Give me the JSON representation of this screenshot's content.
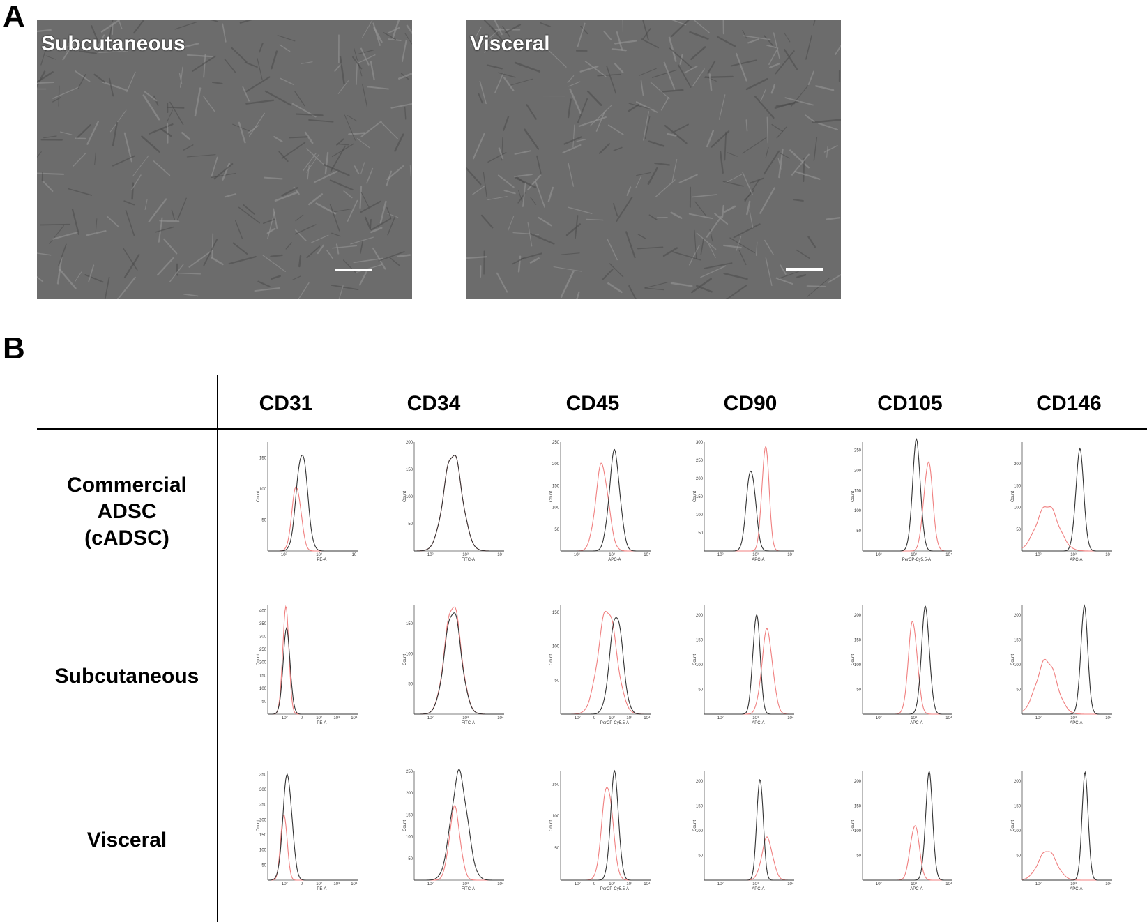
{
  "panels": {
    "a": "A",
    "b": "B"
  },
  "micrographs": [
    {
      "label": "Subcutaneous"
    },
    {
      "label": "Visceral"
    }
  ],
  "table": {
    "columns": [
      "CD31",
      "CD34",
      "CD45",
      "CD90",
      "CD105",
      "CD146"
    ],
    "rows": [
      {
        "label": [
          "Commercial",
          "ADSC",
          "(cADSC)"
        ]
      },
      {
        "label": [
          "Subcutaneous"
        ]
      },
      {
        "label": [
          "Visceral"
        ]
      }
    ]
  },
  "colors": {
    "control": "#333333",
    "marker": "#f08080"
  },
  "chart_data": {
    "type": "histogram-grid",
    "ylabel": "Count",
    "series_colors": {
      "black": "#333333",
      "red": "#f08080"
    },
    "rows": [
      {
        "sample": "Commercial ADSC (cADSC)",
        "plots": [
          {
            "marker": "CD31",
            "xlabel": "PE-A",
            "ymax": 175,
            "yticks": [
              "50",
              "100",
              "150"
            ],
            "xticks": [
              "10²",
              "10³",
              "10"
            ],
            "black": {
              "center": 0.38,
              "width": 0.06,
              "peak": 160
            },
            "red": {
              "center": 0.32,
              "width": 0.05,
              "peak": 105
            }
          },
          {
            "marker": "CD34",
            "xlabel": "FITC-A",
            "ymax": 200,
            "yticks": [
              "50",
              "100",
              "150",
              "200"
            ],
            "xticks": [
              "10²",
              "10³",
              "10⁴"
            ],
            "black": {
              "center": 0.43,
              "width": 0.1,
              "peak": 180
            },
            "red": {
              "center": 0.43,
              "width": 0.1,
              "peak": 180
            }
          },
          {
            "marker": "CD45",
            "xlabel": "APC-A",
            "ymax": 250,
            "yticks": [
              "50",
              "100",
              "150",
              "200",
              "250"
            ],
            "xticks": [
              "10²",
              "10³",
              "10⁴"
            ],
            "black": {
              "center": 0.6,
              "width": 0.06,
              "peak": 225
            },
            "red": {
              "center": 0.46,
              "width": 0.07,
              "peak": 198
            }
          },
          {
            "marker": "CD90",
            "xlabel": "APC-A",
            "ymax": 300,
            "yticks": [
              "50",
              "100",
              "150",
              "200",
              "250",
              "300"
            ],
            "xticks": [
              "10²",
              "10³",
              "10⁴"
            ],
            "black": {
              "center": 0.52,
              "width": 0.05,
              "peak": 228
            },
            "red": {
              "center": 0.68,
              "width": 0.04,
              "peak": 290
            }
          },
          {
            "marker": "CD105",
            "xlabel": "PerCP-Cy5.5-A",
            "ymax": 270,
            "yticks": [
              "50",
              "100",
              "150",
              "200",
              "250"
            ],
            "xticks": [
              "10²",
              "10³",
              "10⁴"
            ],
            "black": {
              "center": 0.6,
              "width": 0.045,
              "peak": 268
            },
            "red": {
              "center": 0.73,
              "width": 0.05,
              "peak": 220
            }
          },
          {
            "marker": "CD146",
            "xlabel": "APC-A",
            "ymax": 250,
            "yticks": [
              "50",
              "100",
              "150",
              "200"
            ],
            "xticks": [
              "10²",
              "10³",
              "10⁴"
            ],
            "black": {
              "center": 0.64,
              "width": 0.045,
              "peak": 228
            },
            "red": {
              "center": 0.28,
              "width": 0.12,
              "peak": 105
            }
          }
        ]
      },
      {
        "sample": "Subcutaneous",
        "plots": [
          {
            "marker": "CD31",
            "xlabel": "PE-A",
            "ymax": 420,
            "yticks": [
              "50",
              "100",
              "150",
              "200",
              "250",
              "300",
              "350",
              "400"
            ],
            "xticks": [
              "-10²",
              "0",
              "10²",
              "10³",
              "10⁴"
            ],
            "black": {
              "center": 0.21,
              "width": 0.04,
              "peak": 320
            },
            "red": {
              "center": 0.2,
              "width": 0.035,
              "peak": 405
            }
          },
          {
            "marker": "CD34",
            "xlabel": "FITC-A",
            "ymax": 180,
            "yticks": [
              "50",
              "100",
              "150"
            ],
            "xticks": [
              "10²",
              "10³",
              "10⁴"
            ],
            "black": {
              "center": 0.43,
              "width": 0.09,
              "peak": 172
            },
            "red": {
              "center": 0.43,
              "width": 0.09,
              "peak": 182
            }
          },
          {
            "marker": "CD45",
            "xlabel": "PerCP-Cy5.5-A",
            "ymax": 160,
            "yticks": [
              "50",
              "100",
              "150"
            ],
            "xticks": [
              "-10²",
              "0",
              "10²",
              "10³",
              "10⁴"
            ],
            "black": {
              "center": 0.62,
              "width": 0.07,
              "peak": 148
            },
            "red": {
              "center": 0.52,
              "width": 0.1,
              "peak": 155
            }
          },
          {
            "marker": "CD90",
            "xlabel": "APC-A",
            "ymax": 220,
            "yticks": [
              "50",
              "100",
              "150",
              "200"
            ],
            "xticks": [
              "10²",
              "10³",
              "10⁴"
            ],
            "black": {
              "center": 0.58,
              "width": 0.04,
              "peak": 205
            },
            "red": {
              "center": 0.7,
              "width": 0.06,
              "peak": 168
            }
          },
          {
            "marker": "CD105",
            "xlabel": "APC-A",
            "ymax": 220,
            "yticks": [
              "50",
              "100",
              "150",
              "200"
            ],
            "xticks": [
              "10²",
              "10³",
              "10⁴"
            ],
            "black": {
              "center": 0.7,
              "width": 0.045,
              "peak": 212
            },
            "red": {
              "center": 0.56,
              "width": 0.05,
              "peak": 187
            }
          },
          {
            "marker": "CD146",
            "xlabel": "APC-A",
            "ymax": 220,
            "yticks": [
              "50",
              "100",
              "150",
              "200"
            ],
            "xticks": [
              "10²",
              "10³",
              "10⁴"
            ],
            "black": {
              "center": 0.69,
              "width": 0.04,
              "peak": 212
            },
            "red": {
              "center": 0.27,
              "width": 0.11,
              "peak": 110
            }
          }
        ]
      },
      {
        "sample": "Visceral",
        "plots": [
          {
            "marker": "CD31",
            "xlabel": "PE-A",
            "ymax": 360,
            "yticks": [
              "50",
              "100",
              "150",
              "200",
              "250",
              "300",
              "350"
            ],
            "xticks": [
              "-10²",
              "0",
              "10²",
              "10³",
              "10⁴"
            ],
            "black": {
              "center": 0.22,
              "width": 0.05,
              "peak": 350
            },
            "red": {
              "center": 0.18,
              "width": 0.035,
              "peak": 225
            }
          },
          {
            "marker": "CD34",
            "xlabel": "FITC-A",
            "ymax": 250,
            "yticks": [
              "50",
              "100",
              "150",
              "200",
              "250"
            ],
            "xticks": [
              "10²",
              "10³",
              "10⁴"
            ],
            "black": {
              "center": 0.5,
              "width": 0.09,
              "peak": 245
            },
            "red": {
              "center": 0.45,
              "width": 0.06,
              "peak": 165
            }
          },
          {
            "marker": "CD45",
            "xlabel": "PerCP-Cy5.5-A",
            "ymax": 170,
            "yticks": [
              "50",
              "100",
              "150"
            ],
            "xticks": [
              "-10²",
              "0",
              "10²",
              "10³",
              "10⁴"
            ],
            "black": {
              "center": 0.6,
              "width": 0.045,
              "peak": 165
            },
            "red": {
              "center": 0.52,
              "width": 0.06,
              "peak": 150
            }
          },
          {
            "marker": "CD90",
            "xlabel": "APC-A",
            "ymax": 220,
            "yticks": [
              "50",
              "100",
              "150",
              "200"
            ],
            "xticks": [
              "10²",
              "10³",
              "10⁴"
            ],
            "black": {
              "center": 0.62,
              "width": 0.035,
              "peak": 212
            },
            "red": {
              "center": 0.7,
              "width": 0.06,
              "peak": 85
            }
          },
          {
            "marker": "CD105",
            "xlabel": "APC-A",
            "ymax": 220,
            "yticks": [
              "50",
              "100",
              "150",
              "200"
            ],
            "xticks": [
              "10²",
              "10³",
              "10⁴"
            ],
            "black": {
              "center": 0.74,
              "width": 0.04,
              "peak": 212
            },
            "red": {
              "center": 0.58,
              "width": 0.05,
              "peak": 112
            }
          },
          {
            "marker": "CD146",
            "xlabel": "APC-A",
            "ymax": 220,
            "yticks": [
              "50",
              "100",
              "150",
              "200"
            ],
            "xticks": [
              "10²",
              "10³",
              "10⁴"
            ],
            "black": {
              "center": 0.7,
              "width": 0.035,
              "peak": 212
            },
            "red": {
              "center": 0.28,
              "width": 0.1,
              "peak": 60
            }
          }
        ]
      }
    ]
  }
}
